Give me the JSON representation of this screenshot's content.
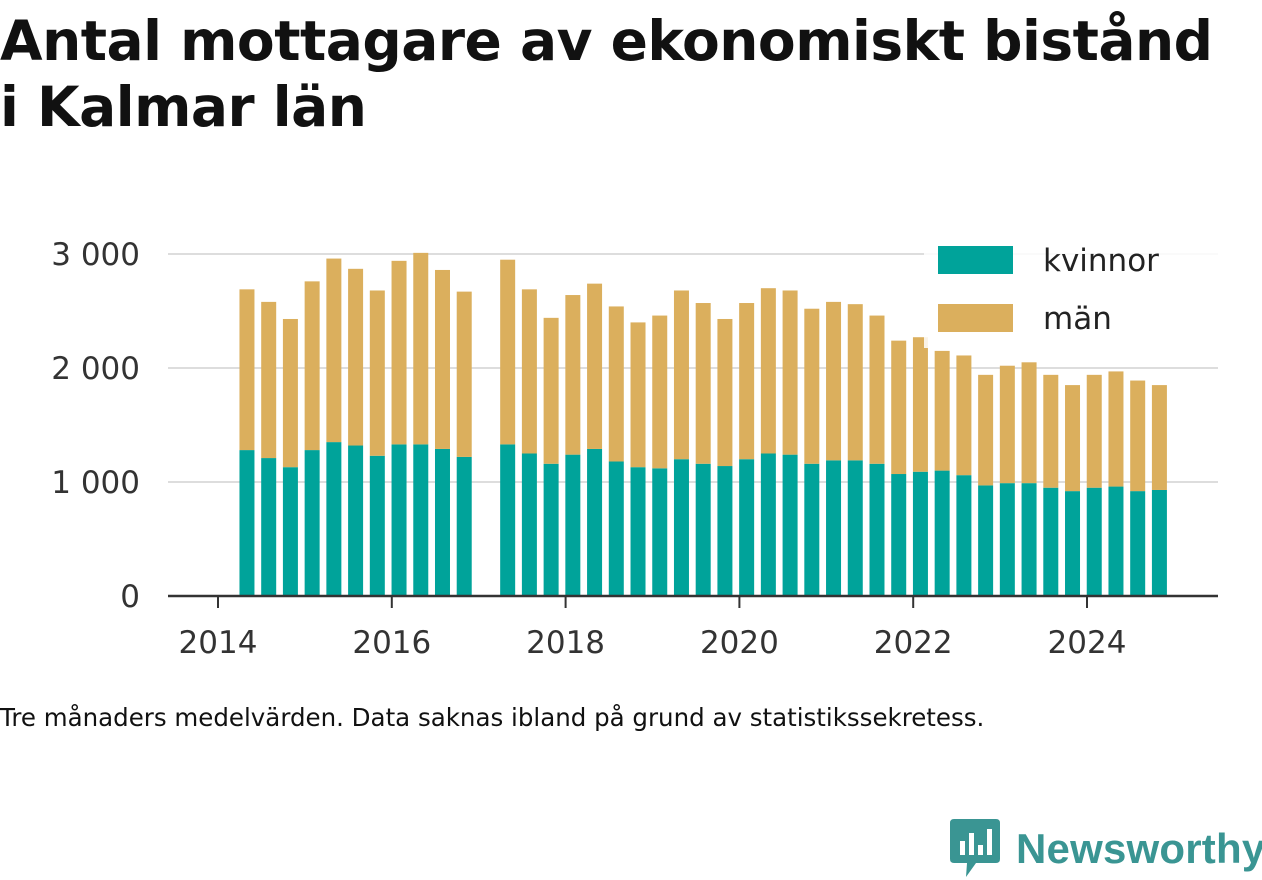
{
  "title_lines": [
    "Antal mottagare av ekonomiskt bistånd",
    "i Kalmar län"
  ],
  "caption": "Tre månaders medelvärden. Data saknas ibland på grund av statistikssekretess.",
  "brand": "Newsworthy",
  "colors": {
    "kvinnor": "#00a39a",
    "man": "#dbaf5d",
    "grid": "#dddddd",
    "axis": "#333333",
    "brand": "#3a9593"
  },
  "chart_data": {
    "type": "bar",
    "stacked": true,
    "x_ticks": [
      "2014",
      "2016",
      "2018",
      "2020",
      "2022",
      "2024"
    ],
    "y_ticks": [
      "0",
      "1 000",
      "2 000",
      "3 000"
    ],
    "ylim": [
      0,
      3000
    ],
    "grid": true,
    "legend_position": "top-right",
    "x": [
      "2014-05",
      "2014-08",
      "2014-11",
      "2015-02",
      "2015-05",
      "2015-08",
      "2015-11",
      "2016-02",
      "2016-05",
      "2016-08",
      "2016-11",
      "2017-05",
      "2017-08",
      "2017-11",
      "2018-02",
      "2018-05",
      "2018-08",
      "2018-11",
      "2019-02",
      "2019-05",
      "2019-08",
      "2019-11",
      "2020-02",
      "2020-05",
      "2020-08",
      "2020-11",
      "2021-02",
      "2021-05",
      "2021-08",
      "2021-11",
      "2022-02",
      "2022-05",
      "2022-08",
      "2022-11",
      "2023-02",
      "2023-05",
      "2023-08",
      "2023-11",
      "2024-02",
      "2024-05",
      "2024-08",
      "2024-11"
    ],
    "series": [
      {
        "name": "kvinnor",
        "values": [
          1280,
          1210,
          1130,
          1280,
          1350,
          1320,
          1230,
          1330,
          1330,
          1290,
          1220,
          1330,
          1250,
          1160,
          1240,
          1290,
          1180,
          1130,
          1120,
          1200,
          1160,
          1140,
          1200,
          1250,
          1240,
          1160,
          1190,
          1190,
          1160,
          1070,
          1090,
          1100,
          1060,
          970,
          990,
          990,
          950,
          920,
          950,
          960,
          920,
          930
        ]
      },
      {
        "name": "män",
        "values": [
          1410,
          1370,
          1300,
          1480,
          1610,
          1550,
          1450,
          1610,
          1680,
          1570,
          1450,
          1620,
          1440,
          1280,
          1400,
          1450,
          1360,
          1270,
          1340,
          1480,
          1410,
          1290,
          1370,
          1450,
          1440,
          1360,
          1390,
          1370,
          1300,
          1170,
          1180,
          1050,
          1050,
          970,
          1030,
          1060,
          990,
          930,
          990,
          1010,
          970,
          920
        ]
      }
    ]
  }
}
